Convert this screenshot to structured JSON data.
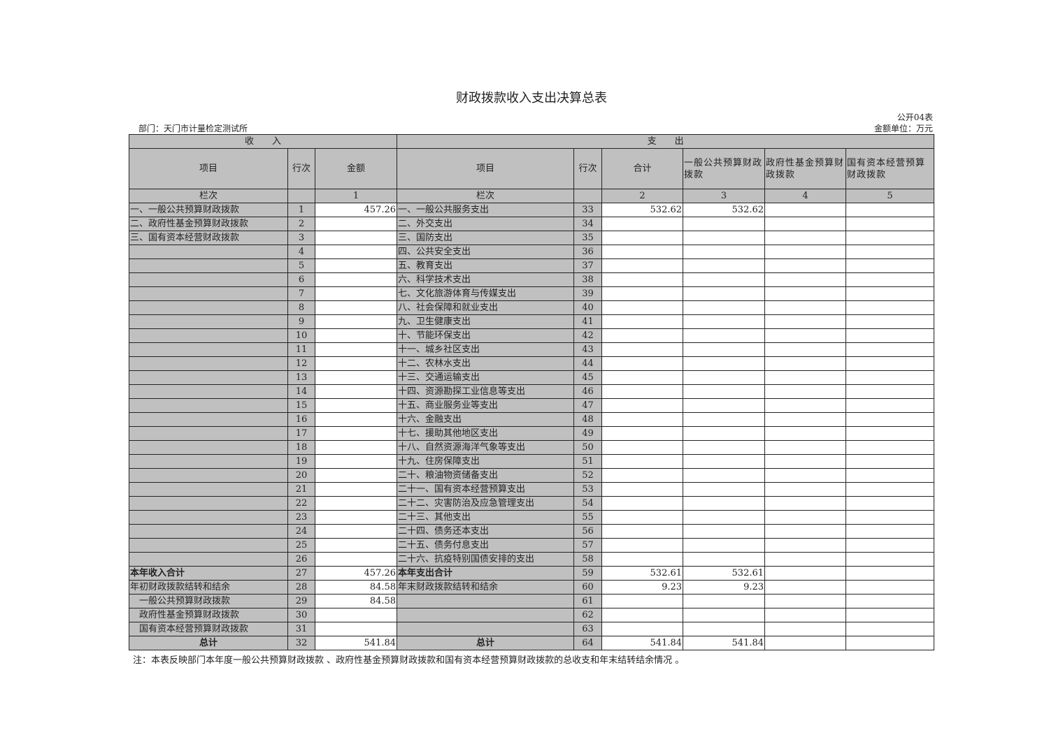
{
  "title": "财政拨款收入支出决算总表",
  "code": "公开04表",
  "department": "部门：天门市计量检定测试所",
  "unit": "金额单位：万元",
  "headers": {
    "income": "收　　入",
    "expense": "支　　出",
    "item": "项目",
    "line": "行次",
    "amount": "金额",
    "total": "合计",
    "general": "一般公共预算财政拨款",
    "fund": "政府性基金预算财政拨款",
    "state": "国有资本经营预算财政拨款",
    "col_label": "栏次",
    "col_nums": [
      "1",
      "2",
      "3",
      "4",
      "5"
    ]
  },
  "rows": [
    [
      "一、一般公共预算财政拨款",
      "1",
      "457.26",
      "一、一般公共服务支出",
      "33",
      "532.62",
      "532.62",
      "",
      ""
    ],
    [
      "二、政府性基金预算财政拨款",
      "2",
      "",
      "二、外交支出",
      "34",
      "",
      "",
      "",
      ""
    ],
    [
      "三、国有资本经营财政拨款",
      "3",
      "",
      "三、国防支出",
      "35",
      "",
      "",
      "",
      ""
    ],
    [
      "",
      "4",
      "",
      "四、公共安全支出",
      "36",
      "",
      "",
      "",
      ""
    ],
    [
      "",
      "5",
      "",
      "五、教育支出",
      "37",
      "",
      "",
      "",
      ""
    ],
    [
      "",
      "6",
      "",
      "六、科学技术支出",
      "38",
      "",
      "",
      "",
      ""
    ],
    [
      "",
      "7",
      "",
      "七、文化旅游体育与传媒支出",
      "39",
      "",
      "",
      "",
      ""
    ],
    [
      "",
      "8",
      "",
      "八、社会保障和就业支出",
      "40",
      "",
      "",
      "",
      ""
    ],
    [
      "",
      "9",
      "",
      "九、卫生健康支出",
      "41",
      "",
      "",
      "",
      ""
    ],
    [
      "",
      "10",
      "",
      "十、节能环保支出",
      "42",
      "",
      "",
      "",
      ""
    ],
    [
      "",
      "11",
      "",
      "十一、城乡社区支出",
      "43",
      "",
      "",
      "",
      ""
    ],
    [
      "",
      "12",
      "",
      "十二、农林水支出",
      "44",
      "",
      "",
      "",
      ""
    ],
    [
      "",
      "13",
      "",
      "十三、交通运输支出",
      "45",
      "",
      "",
      "",
      ""
    ],
    [
      "",
      "14",
      "",
      "十四、资源勘探工业信息等支出",
      "46",
      "",
      "",
      "",
      ""
    ],
    [
      "",
      "15",
      "",
      "十五、商业服务业等支出",
      "47",
      "",
      "",
      "",
      ""
    ],
    [
      "",
      "16",
      "",
      "十六、金融支出",
      "48",
      "",
      "",
      "",
      ""
    ],
    [
      "",
      "17",
      "",
      "十七、援助其他地区支出",
      "49",
      "",
      "",
      "",
      ""
    ],
    [
      "",
      "18",
      "",
      "十八、自然资源海洋气象等支出",
      "50",
      "",
      "",
      "",
      ""
    ],
    [
      "",
      "19",
      "",
      "十九、住房保障支出",
      "51",
      "",
      "",
      "",
      ""
    ],
    [
      "",
      "20",
      "",
      "二十、粮油物资储备支出",
      "52",
      "",
      "",
      "",
      ""
    ],
    [
      "",
      "21",
      "",
      "二十一、国有资本经营预算支出",
      "53",
      "",
      "",
      "",
      ""
    ],
    [
      "",
      "22",
      "",
      "二十二、灾害防治及应急管理支出",
      "54",
      "",
      "",
      "",
      ""
    ],
    [
      "",
      "23",
      "",
      "二十三、其他支出",
      "55",
      "",
      "",
      "",
      ""
    ],
    [
      "",
      "24",
      "",
      "二十四、债务还本支出",
      "56",
      "",
      "",
      "",
      ""
    ],
    [
      "",
      "25",
      "",
      "二十五、债务付息支出",
      "57",
      "",
      "",
      "",
      ""
    ],
    [
      "",
      "26",
      "",
      "二十六、抗疫特别国债安排的支出",
      "58",
      "",
      "",
      "",
      ""
    ],
    [
      "本年收入合计",
      "27",
      "457.26",
      "本年支出合计",
      "59",
      "532.61",
      "532.61",
      "",
      ""
    ],
    [
      "年初财政拨款结转和结余",
      "28",
      "84.58",
      "年末财政拨款结转和结余",
      "60",
      "9.23",
      "9.23",
      "",
      ""
    ],
    [
      "　一般公共预算财政拨款",
      "29",
      "84.58",
      "",
      "61",
      "",
      "",
      "",
      ""
    ],
    [
      "　政府性基金预算财政拨款",
      "30",
      "",
      "",
      "62",
      "",
      "",
      "",
      ""
    ],
    [
      "　国有资本经营预算财政拨款",
      "31",
      "",
      "",
      "63",
      "",
      "",
      "",
      ""
    ],
    [
      "总计",
      "32",
      "541.84",
      "总计",
      "64",
      "541.84",
      "541.84",
      "",
      ""
    ]
  ],
  "note": "注：本表反映部门本年度一般公共预算财政拨款 、政府性基金预算财政拨款和国有资本经营预算财政拨款的总收支和年末结转结余情况 。"
}
